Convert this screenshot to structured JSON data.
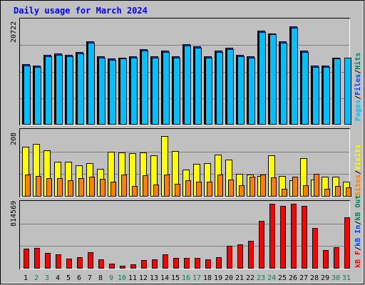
{
  "title": "Daily usage for March 2024",
  "colors": {
    "background": "#c0c0c0",
    "title": "#0000ff",
    "hits": "#00805c",
    "files": "#0040ff",
    "pages": "#00c0ff",
    "visits": "#ffff00",
    "sites": "#ff8000",
    "kb_in": "#ff0000",
    "kb_out": "#00805c",
    "weekend_day": "#00805c",
    "weekday": "#000000"
  },
  "chart_data": [
    {
      "type": "bar",
      "panel": "hits-files-pages",
      "ymax_label": "20722",
      "ylim": [
        0,
        20722
      ],
      "legend": {
        "hits": "Hits",
        "files": "Files",
        "pages": "Pages",
        "sep": "/"
      },
      "categories": [
        "1",
        "2",
        "3",
        "4",
        "5",
        "6",
        "7",
        "8",
        "9",
        "10",
        "11",
        "12",
        "13",
        "14",
        "15",
        "16",
        "17",
        "18",
        "19",
        "20",
        "21",
        "22",
        "23",
        "24",
        "25",
        "26",
        "27",
        "28",
        "29",
        "30",
        "31"
      ],
      "weekend": [
        false,
        true,
        true,
        false,
        false,
        false,
        false,
        false,
        true,
        true,
        false,
        false,
        false,
        false,
        false,
        true,
        true,
        false,
        false,
        false,
        false,
        false,
        true,
        true,
        false,
        false,
        false,
        false,
        false,
        true,
        true
      ],
      "series": [
        {
          "name": "Hits",
          "values": [
            12150,
            11880,
            14040,
            14310,
            14040,
            14580,
            16740,
            13770,
            13230,
            13500,
            13770,
            15120,
            13770,
            14850,
            13770,
            16200,
            15660,
            13770,
            14850,
            15390,
            14040,
            13770,
            18900,
            18360,
            16740,
            19710,
            14850,
            11880,
            11880,
            13500,
            0
          ]
        },
        {
          "name": "Files",
          "values": [
            12150,
            11880,
            14040,
            14310,
            14040,
            14580,
            16740,
            13770,
            13230,
            13500,
            13770,
            15120,
            13770,
            14850,
            13770,
            16200,
            15660,
            13770,
            14850,
            15390,
            14040,
            13770,
            18900,
            18360,
            16740,
            19710,
            14850,
            11880,
            11880,
            13500,
            0
          ]
        },
        {
          "name": "Pages",
          "values": [
            11880,
            11610,
            13770,
            14040,
            13770,
            14310,
            16470,
            13500,
            12960,
            13230,
            13500,
            14850,
            13500,
            14580,
            13500,
            15930,
            15390,
            13500,
            14580,
            15120,
            13770,
            13500,
            18630,
            18090,
            16470,
            19440,
            14580,
            11610,
            11610,
            13230,
            13500
          ]
        }
      ]
    },
    {
      "type": "bar",
      "panel": "visits-sites",
      "ymax_label": "208",
      "ylim": [
        0,
        208
      ],
      "legend": {
        "visits": "Visits",
        "sites": "Sites",
        "sep": "/"
      },
      "categories": [
        "1",
        "2",
        "3",
        "4",
        "5",
        "6",
        "7",
        "8",
        "9",
        "10",
        "11",
        "12",
        "13",
        "14",
        "15",
        "16",
        "17",
        "18",
        "19",
        "20",
        "21",
        "22",
        "23",
        "24",
        "25",
        "26",
        "27",
        "28",
        "29",
        "30",
        "31"
      ],
      "series": [
        {
          "name": "Visits",
          "values": [
            159,
            170,
            148,
            112,
            111,
            101,
            108,
            90,
            143,
            142,
            139,
            142,
            132,
            194,
            146,
            88,
            106,
            107,
            136,
            120,
            74,
            72,
            67,
            132,
            66,
            52,
            123,
            55,
            64,
            65,
            48
          ]
        },
        {
          "name": "Sites",
          "values": [
            72,
            66,
            59,
            59,
            53,
            60,
            63,
            58,
            47,
            71,
            35,
            68,
            38,
            71,
            41,
            53,
            48,
            47,
            70,
            54,
            37,
            63,
            70,
            62,
            25,
            64,
            37,
            74,
            25,
            35,
            29
          ]
        }
      ]
    },
    {
      "type": "bar",
      "panel": "kbytes",
      "ymax_label": "814569",
      "ylim": [
        0,
        814569
      ],
      "legend": {
        "kb_in": "kB In",
        "kb_out": "kB Out",
        "kb_f": "kB F",
        "sep": "/"
      },
      "categories": [
        "1",
        "2",
        "3",
        "4",
        "5",
        "6",
        "7",
        "8",
        "9",
        "10",
        "11",
        "12",
        "13",
        "14",
        "15",
        "16",
        "17",
        "18",
        "19",
        "20",
        "21",
        "22",
        "23",
        "24",
        "25",
        "26",
        "27",
        "28",
        "29",
        "30",
        "31"
      ],
      "series": [
        {
          "name": "kB F",
          "values": [
            254000,
            259000,
            196000,
            176000,
            124000,
            143000,
            202000,
            116000,
            65000,
            36000,
            50000,
            111000,
            118000,
            176000,
            131000,
            130000,
            130000,
            117000,
            145000,
            282000,
            300000,
            347000,
            596000,
            814569,
            787000,
            814000,
            787000,
            507000,
            237000,
            271000,
            648000
          ]
        }
      ]
    }
  ]
}
